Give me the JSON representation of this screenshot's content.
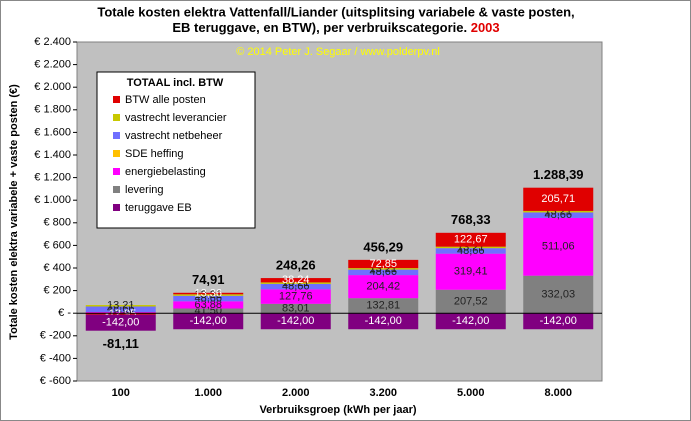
{
  "chart_data": {
    "type": "stacked_bar",
    "title_lines": [
      "Totale kosten elektra Vattenfall/Liander  (uitsplitsing variabele & vaste posten,",
      "EB teruggave, en BTW), per verbruikscategorie."
    ],
    "title_year": "2003",
    "copyright": "© 2014 Peter J. Segaar / www.polderpv.nl",
    "y_label": "Totale kosten elektra variabele + vaste posten (€)",
    "x_label": "Verbruiksgroep (kWh per jaar)",
    "legend_title": "TOTAAL incl. BTW",
    "categories": [
      "100",
      "1.000",
      "2.000",
      "3.200",
      "5.000",
      "8.000"
    ],
    "series": [
      {
        "name": "levering",
        "color": "#808080",
        "values": [
          4.15,
          41.5,
          83.01,
          132.81,
          207.52,
          332.03
        ],
        "value_labels": [
          "4,15",
          "41,50",
          "83,01",
          "132,81",
          "207,52",
          "332,03"
        ]
      },
      {
        "name": "energiebelasting",
        "color": "#ff00ff",
        "values": [
          6.39,
          63.88,
          127.76,
          204.42,
          319.41,
          511.06
        ],
        "value_labels": [
          "6,39",
          "63,88",
          "127,76",
          "204,42",
          "319,41",
          "511,06"
        ]
      },
      {
        "name": "SDE heffing",
        "color": "#ffc000",
        "values": [
          null,
          null,
          null,
          null,
          null,
          null
        ],
        "value_labels": [
          null,
          null,
          null,
          null,
          null,
          null
        ]
      },
      {
        "name": "vastrecht netbeheer",
        "color": "#6f6fff",
        "values": [
          48.66,
          48.66,
          48.66,
          48.66,
          48.66,
          48.66
        ],
        "value_labels": [
          "48,66",
          "48,66",
          "48,66",
          "48,66",
          "48,66",
          "48,66"
        ]
      },
      {
        "name": "vastrecht leverancier",
        "color": "#c8c800",
        "values": [
          13.21,
          13.21,
          13.21,
          13.21,
          13.21,
          13.21
        ],
        "value_labels": [
          "13,21",
          "13,21",
          "13,21",
          "13,21",
          "13,21",
          "13,21"
        ]
      },
      {
        "name": "BTW alle posten",
        "color": "#e00000",
        "values": [
          -12.95,
          13.36,
          38.24,
          72.85,
          122.67,
          205.71
        ],
        "value_labels": [
          "-12,95",
          "13,36",
          "38,24",
          "72,85",
          "122,67",
          "205,71"
        ]
      },
      {
        "name": "teruggave EB",
        "color": "#800080",
        "values": [
          -142,
          -142,
          -142,
          -142,
          -142,
          -142
        ],
        "value_labels": [
          "-142,00",
          "-142,00",
          "-142,00",
          "-142,00",
          "-142,00",
          "-142,00"
        ]
      }
    ],
    "totals": [
      {
        "value": -81.11,
        "label": "-81,11"
      },
      {
        "value": 74.91,
        "label": "74,91"
      },
      {
        "value": 248.26,
        "label": "248,26"
      },
      {
        "value": 456.29,
        "label": "456,29"
      },
      {
        "value": 768.33,
        "label": "768,33"
      },
      {
        "value": 1288.39,
        "label": "1.288,39"
      }
    ],
    "legend_order": [
      5,
      4,
      3,
      2,
      1,
      0,
      6
    ],
    "ylim": [
      -600,
      2400
    ],
    "yticks": [
      {
        "value": -600,
        "label": "€ -600"
      },
      {
        "value": -400,
        "label": "€ -400"
      },
      {
        "value": -200,
        "label": "€ -200"
      },
      {
        "value": 0,
        "label": "€ -"
      },
      {
        "value": 200,
        "label": "€ 200"
      },
      {
        "value": 400,
        "label": "€ 400"
      },
      {
        "value": 600,
        "label": "€ 600"
      },
      {
        "value": 800,
        "label": "€ 800"
      },
      {
        "value": 1000,
        "label": "€ 1.000"
      },
      {
        "value": 1200,
        "label": "€ 1.200"
      },
      {
        "value": 1400,
        "label": "€ 1.400"
      },
      {
        "value": 1600,
        "label": "€ 1.600"
      },
      {
        "value": 1800,
        "label": "€ 1.800"
      },
      {
        "value": 2000,
        "label": "€ 2.000"
      },
      {
        "value": 2200,
        "label": "€ 2.200"
      },
      {
        "value": 2400,
        "label": "€ 2.400"
      }
    ],
    "grid": false
  }
}
